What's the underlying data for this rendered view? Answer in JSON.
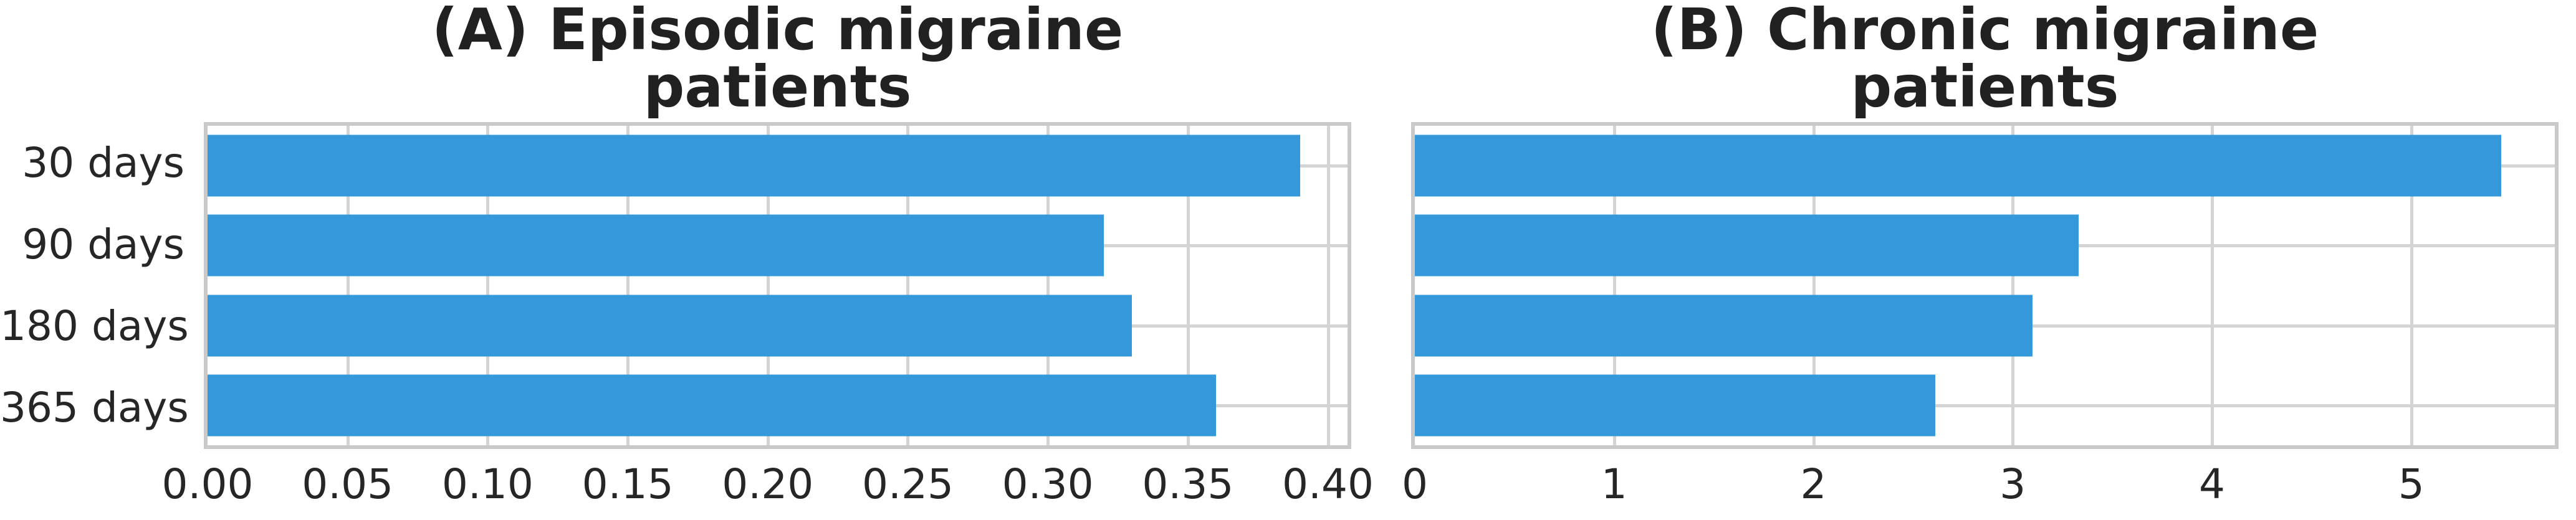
{
  "colors": {
    "bar": "#3598db",
    "gridline": "#d4d4d4",
    "frame": "#c9c9c9",
    "text": "#262626",
    "background": "#ffffff"
  },
  "chart_data": [
    {
      "type": "bar",
      "orientation": "horizontal",
      "title": "(A) Episodic migraine patients",
      "title_lines": [
        "(A) Episodic migraine",
        "patients"
      ],
      "categories": [
        "30 days",
        "90 days",
        "180 days",
        "365 days"
      ],
      "values": [
        0.39,
        0.32,
        0.33,
        0.36
      ],
      "xlim": [
        0,
        0.407
      ],
      "xticks": [
        0,
        0.05,
        0.1,
        0.15,
        0.2,
        0.25,
        0.3,
        0.35,
        0.4
      ],
      "xtick_labels": [
        "0.00",
        "0.05",
        "0.10",
        "0.15",
        "0.20",
        "0.25",
        "0.30",
        "0.35",
        "0.40"
      ],
      "xlabel": "",
      "ylabel": "",
      "grid": true,
      "legend": false,
      "show_category_labels": true,
      "bar_color": "#3598db"
    },
    {
      "type": "bar",
      "orientation": "horizontal",
      "title": "(B) Chronic migraine patients",
      "title_lines": [
        "(B) Chronic migraine",
        "patients"
      ],
      "categories": [
        "30 days",
        "90 days",
        "180 days",
        "365 days"
      ],
      "values": [
        5.45,
        3.33,
        3.1,
        2.61
      ],
      "xlim": [
        0,
        5.72
      ],
      "xticks": [
        0,
        1,
        2,
        3,
        4,
        5
      ],
      "xtick_labels": [
        "0",
        "1",
        "2",
        "3",
        "4",
        "5"
      ],
      "xlabel": "",
      "ylabel": "",
      "grid": true,
      "legend": false,
      "show_category_labels": false,
      "bar_color": "#3598db"
    }
  ]
}
